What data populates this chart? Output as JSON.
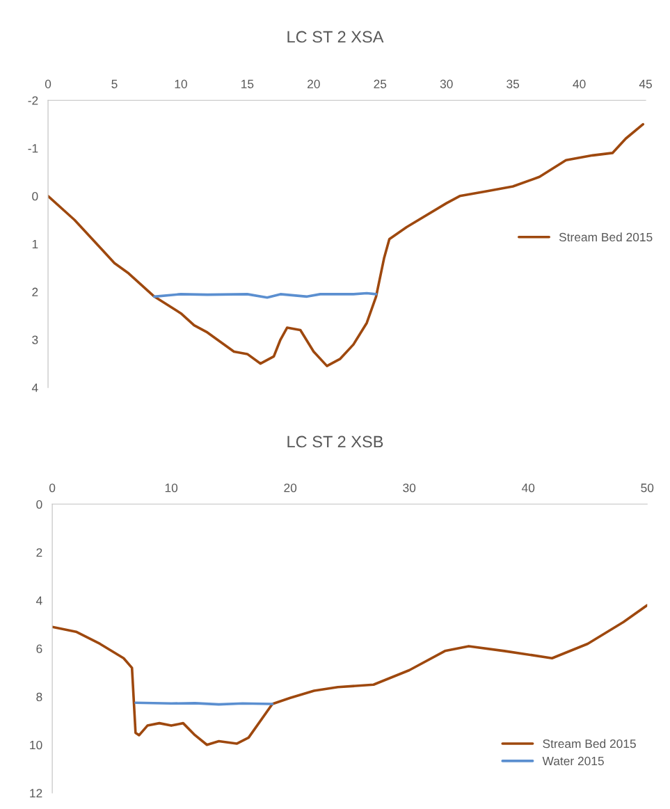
{
  "chart_data": [
    {
      "type": "line",
      "title": "LC ST 2 XSA",
      "xlim": [
        0,
        45
      ],
      "xticks": [
        0,
        5,
        10,
        15,
        20,
        25,
        30,
        35,
        40,
        45
      ],
      "ylim": [
        4,
        -2
      ],
      "yticks": [
        -2,
        -1,
        0,
        1,
        2,
        3,
        4
      ],
      "grid": false,
      "legend": "right",
      "marker": "none",
      "line_style": "solid",
      "series": [
        {
          "name": "Stream Bed 2015",
          "color": "#9e480e",
          "x": [
            0,
            2,
            4,
            5,
            6,
            8,
            10,
            11,
            12,
            13,
            14,
            15,
            16,
            17,
            17.5,
            18,
            19,
            20,
            21,
            22,
            23,
            24,
            24.7,
            25.3,
            25.7,
            27,
            30,
            31,
            33,
            35,
            37,
            39,
            41,
            42.5,
            43.5,
            44.8
          ],
          "values": [
            0,
            0.5,
            1.1,
            1.4,
            1.6,
            2.1,
            2.45,
            2.7,
            2.85,
            3.05,
            3.25,
            3.3,
            3.5,
            3.35,
            3.0,
            2.75,
            2.8,
            3.25,
            3.55,
            3.4,
            3.1,
            2.65,
            2.1,
            1.3,
            0.9,
            0.65,
            0.15,
            0,
            -0.1,
            -0.2,
            -0.4,
            -0.75,
            -0.85,
            -0.9,
            -1.2,
            -1.5
          ]
        },
        {
          "color": "#5b8fd0",
          "x": [
            8,
            10,
            12,
            15,
            16.5,
            17.5,
            19.5,
            20.5,
            23,
            24,
            24.7
          ],
          "values": [
            2.1,
            2.05,
            2.06,
            2.05,
            2.12,
            2.05,
            2.1,
            2.05,
            2.05,
            2.03,
            2.05
          ]
        }
      ]
    },
    {
      "type": "line",
      "title": "LC ST 2 XSB",
      "xlim": [
        0,
        50
      ],
      "xticks": [
        0,
        10,
        20,
        30,
        40,
        50
      ],
      "ylim": [
        12,
        0
      ],
      "yticks": [
        0,
        2,
        4,
        6,
        8,
        10,
        12
      ],
      "grid": false,
      "legend": "bottom right",
      "marker": "none",
      "line_style": "solid",
      "series": [
        {
          "name": "Stream Bed 2015",
          "color": "#9e480e",
          "x": [
            0,
            2,
            4,
            6,
            6.7,
            7,
            7.3,
            8,
            9,
            10,
            11,
            12,
            13,
            14,
            15.5,
            16.5,
            18.5,
            20,
            22,
            24,
            27,
            30,
            33,
            35,
            38,
            42,
            45,
            48,
            50
          ],
          "values": [
            5.1,
            5.3,
            5.8,
            6.4,
            6.8,
            9.5,
            9.6,
            9.2,
            9.1,
            9.2,
            9.1,
            9.6,
            10,
            9.85,
            9.95,
            9.7,
            8.3,
            8.05,
            7.75,
            7.6,
            7.5,
            6.9,
            6.1,
            5.9,
            6.1,
            6.4,
            5.8,
            4.9,
            4.2
          ]
        },
        {
          "name": "Water 2015",
          "color": "#5b8fd0",
          "x": [
            7,
            10,
            12,
            14,
            16,
            18.5
          ],
          "values": [
            8.25,
            8.28,
            8.27,
            8.32,
            8.28,
            8.3
          ]
        }
      ]
    }
  ]
}
